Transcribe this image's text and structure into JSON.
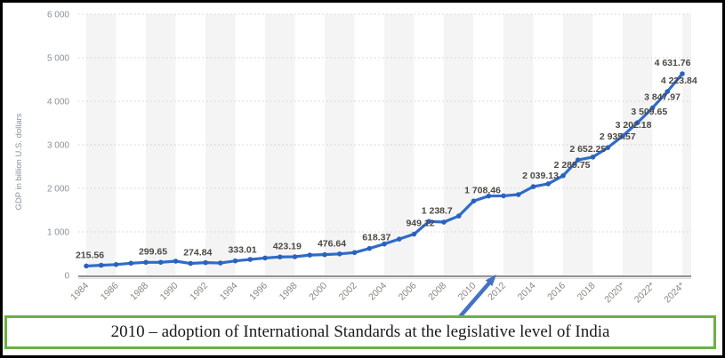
{
  "caption": {
    "text": "2010 – adoption of International Standards at the legislative level of India",
    "border_color": "#6cb043"
  },
  "annotation_arrow": {
    "description": "arrow from caption box pointing to year 2010 on the x-axis",
    "color": "#4472c4"
  },
  "chart_data": {
    "type": "line",
    "title": "",
    "xlabel": "",
    "ylabel": "GDP in billion U.S. dollars",
    "ylim": [
      0,
      6000
    ],
    "grid": "horizontal-dotted",
    "legend": "none",
    "background_stripes": "alternating 2-year light-gray vertical bands",
    "line_color": "#2f6cc8",
    "point_color": "#2a62bd",
    "stripe_color": "#f4f4f5",
    "gridline_color": "#cfcfcf",
    "axis_color": "#949494",
    "x": [
      1984,
      1985,
      1986,
      1987,
      1988,
      1989,
      1990,
      1991,
      1992,
      1993,
      1994,
      1995,
      1996,
      1997,
      1998,
      1999,
      2000,
      2001,
      2002,
      2003,
      2004,
      2005,
      2006,
      2007,
      2008,
      2009,
      2010,
      2011,
      2012,
      2013,
      2014,
      2015,
      2016,
      2017,
      2018,
      2019,
      2020,
      2021,
      2022,
      2023,
      2024
    ],
    "values": [
      215.56,
      232.51,
      248.99,
      279.03,
      299.65,
      301.23,
      326.61,
      274.84,
      293.26,
      284.19,
      333.01,
      366.6,
      399.79,
      423.19,
      428.77,
      466.87,
      476.64,
      493.95,
      523.97,
      618.37,
      721.59,
      834.22,
      949.12,
      1238.7,
      1224.1,
      1365.37,
      1708.46,
      1823.05,
      1827.64,
      1856.72,
      2039.13,
      2103.59,
      2289.75,
      2652.25,
      2718.73,
      2935.57,
      3202.18,
      3509.65,
      3847.97,
      4223.84,
      4631.76
    ],
    "x_tick_years": [
      1984,
      1986,
      1988,
      1990,
      1992,
      1994,
      1996,
      1998,
      2000,
      2002,
      2004,
      2006,
      2008,
      2010,
      2012,
      2014,
      2016,
      2018,
      2020,
      2022,
      2024
    ],
    "x_tick_labels": [
      "1984",
      "1986",
      "1988",
      "1990",
      "1992",
      "1994",
      "1996",
      "1998",
      "2000",
      "2002",
      "2004",
      "2006",
      "2008",
      "2010",
      "2012",
      "2014",
      "2016",
      "2018",
      "2020*",
      "2022*",
      "2024*"
    ],
    "y_ticks": [
      0,
      1000,
      2000,
      3000,
      4000,
      5000,
      6000
    ],
    "y_tick_labels": [
      "0",
      "1 000",
      "2 000",
      "3 000",
      "4 000",
      "5 000",
      "6 000"
    ],
    "point_labels": [
      {
        "year": 1984,
        "text": "215.56",
        "dx": 4
      },
      {
        "year": 1988,
        "text": "299.65",
        "dx": 8
      },
      {
        "year": 1991,
        "text": "274.84",
        "dx": 8
      },
      {
        "year": 1994,
        "text": "333.01",
        "dx": 8
      },
      {
        "year": 1997,
        "text": "423.19",
        "dx": 8
      },
      {
        "year": 2000,
        "text": "476.64",
        "dx": 8
      },
      {
        "year": 2003,
        "text": "618.37",
        "dx": 8
      },
      {
        "year": 2006,
        "text": "949.12",
        "dx": 7
      },
      {
        "year": 2007,
        "text": "1 238.7",
        "dx": 9
      },
      {
        "year": 2010,
        "text": "1 708.46",
        "dx": 10
      },
      {
        "year": 2014,
        "text": "2 039.13",
        "dx": 8
      },
      {
        "year": 2016,
        "text": "2 289.75",
        "dx": 10
      },
      {
        "year": 2017,
        "text": "2 652.25",
        "dx": 11
      },
      {
        "year": 2019,
        "text": "2 935.57",
        "dx": 11
      },
      {
        "year": 2020,
        "text": "3 202.18",
        "dx": 12
      },
      {
        "year": 2021,
        "text": "3 509.65",
        "dx": 13
      },
      {
        "year": 2022,
        "text": "3 847.97",
        "dx": 11
      },
      {
        "year": 2023,
        "text": "4 223.84",
        "dx": 13
      },
      {
        "year": 2024,
        "text": "4 631.76",
        "dx": -11
      }
    ]
  }
}
